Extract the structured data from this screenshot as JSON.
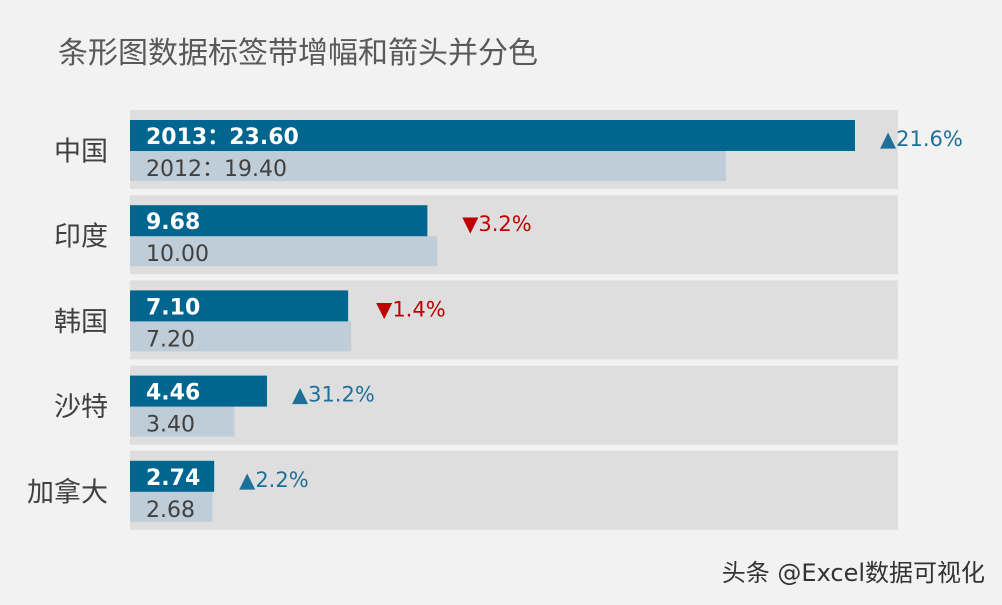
{
  "chart_data": {
    "type": "bar",
    "orientation": "horizontal",
    "title": "条形图数据标签带增幅和箭头并分色",
    "categories": [
      "中国",
      "印度",
      "韩国",
      "沙特",
      "加拿大"
    ],
    "series": [
      {
        "name": "2013",
        "values": [
          23.6,
          9.68,
          7.1,
          4.46,
          2.74
        ],
        "labels": [
          "2013：23.60",
          "9.68",
          "7.10",
          "4.46",
          "2.74"
        ],
        "color": "#00668f"
      },
      {
        "name": "2012",
        "values": [
          19.4,
          10.0,
          7.2,
          3.4,
          2.68
        ],
        "labels": [
          "2012：19.40",
          "10.00",
          "7.20",
          "3.40",
          "2.68"
        ],
        "color": "#bfcdd8"
      }
    ],
    "change": [
      {
        "text": "▲21.6%",
        "direction": "up"
      },
      {
        "text": "▼3.2%",
        "direction": "down"
      },
      {
        "text": "▼1.4%",
        "direction": "down"
      },
      {
        "text": "▲31.2%",
        "direction": "up"
      },
      {
        "text": "▲2.2%",
        "direction": "up"
      }
    ],
    "xlim": [
      0,
      25
    ],
    "band_color": "#dedede",
    "up_color": "#1f6f99",
    "down_color": "#c00000",
    "grid": false,
    "legend": "none"
  },
  "watermark": "头条 @Excel数据可视化"
}
